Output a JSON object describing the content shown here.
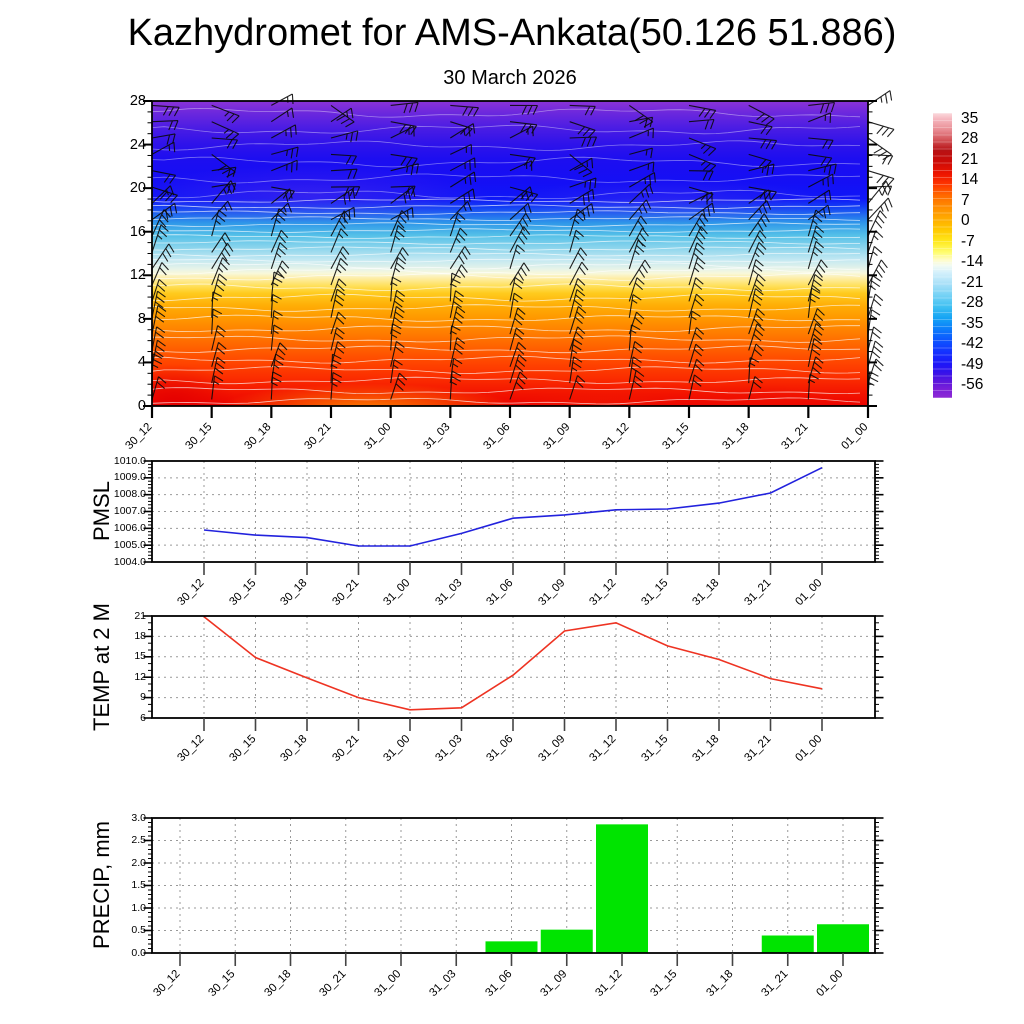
{
  "header": {
    "title": "Kazhydromet for AMS-Ankata(50.126 51.886)",
    "subtitle": "30 March 2026"
  },
  "time_labels": [
    "30_12",
    "30_15",
    "30_18",
    "30_21",
    "31_00",
    "31_03",
    "31_06",
    "31_09",
    "31_12",
    "31_15",
    "31_18",
    "31_21",
    "01_00"
  ],
  "colors": {
    "pmsl_line": "#2222dd",
    "temp_line": "#ee3322",
    "precip_bar": "#00e400",
    "grid": "#999999",
    "axis": "#000000",
    "tick_stub": "#444444",
    "barb": "#0a0a0a",
    "contour_line": "#ffffff"
  },
  "chart_data": [
    {
      "id": "temperature_height_section",
      "type": "heatmap",
      "description": "Time-height temperature cross-section with wind barbs and white contour lines",
      "ylim": [
        0,
        28
      ],
      "yticks": [
        "0",
        "4",
        "8",
        "12",
        "16",
        "20",
        "24",
        "28"
      ],
      "colorbar_ticks": [
        "35",
        "28",
        "21",
        "14",
        "7",
        "0",
        "-7",
        "-14",
        "-21",
        "-28",
        "-35",
        "-42",
        "-49",
        "-56"
      ],
      "wind_barbs": {
        "columns": 13,
        "rows": 19
      },
      "field_gradient": [
        [
          0,
          "#8b33d6"
        ],
        [
          4,
          "#6b28dd"
        ],
        [
          9,
          "#4a1ce4"
        ],
        [
          14,
          "#2f13ea"
        ],
        [
          19,
          "#1d0ef0"
        ],
        [
          27,
          "#140ff5"
        ],
        [
          32,
          "#0f17f7"
        ],
        [
          34.5,
          "#123bf6"
        ],
        [
          37,
          "#2166f0"
        ],
        [
          40,
          "#2f97e9"
        ],
        [
          44,
          "#54c0e8"
        ],
        [
          48,
          "#8ad4ec"
        ],
        [
          52,
          "#c2e8f2"
        ],
        [
          55,
          "#e6f3e9"
        ],
        [
          56.5,
          "#f8f8da"
        ],
        [
          58,
          "#fdeeaa"
        ],
        [
          60.5,
          "#ffe15e"
        ],
        [
          63,
          "#ffcb1e"
        ],
        [
          67,
          "#ffae06"
        ],
        [
          71,
          "#ff9900"
        ],
        [
          76,
          "#ff7d00"
        ],
        [
          81,
          "#ff6000"
        ],
        [
          86,
          "#ff4400"
        ],
        [
          91,
          "#fb2c00"
        ],
        [
          96,
          "#f31300"
        ],
        [
          100,
          "#ec0400"
        ]
      ],
      "colorbar_gradient": [
        [
          0,
          "#fbdade"
        ],
        [
          2,
          "#f6b9c1"
        ],
        [
          6,
          "#e88b92"
        ],
        [
          10,
          "#cf4a4e"
        ],
        [
          13,
          "#b61215"
        ],
        [
          17,
          "#cc0b07"
        ],
        [
          21.5,
          "#ee1500"
        ],
        [
          25,
          "#fe3600"
        ],
        [
          29,
          "#ff6a00"
        ],
        [
          33,
          "#ff8d00"
        ],
        [
          37,
          "#ffab00"
        ],
        [
          41,
          "#ffc900"
        ],
        [
          45,
          "#ffe81c"
        ],
        [
          49,
          "#fffd72"
        ],
        [
          51.5,
          "#fffcc8"
        ],
        [
          53.5,
          "#f3fbf3"
        ],
        [
          56,
          "#d4f0fb"
        ],
        [
          60,
          "#a8e0f8"
        ],
        [
          64,
          "#75d2f5"
        ],
        [
          68,
          "#3fc0f2"
        ],
        [
          72,
          "#14a3f4"
        ],
        [
          76,
          "#0c7bfb"
        ],
        [
          80,
          "#0d52ff"
        ],
        [
          84,
          "#1430ff"
        ],
        [
          88,
          "#1d17f8"
        ],
        [
          91,
          "#3512ea"
        ],
        [
          94,
          "#5a16dd"
        ],
        [
          97,
          "#7b1fd8"
        ],
        [
          100,
          "#8d2ad4"
        ]
      ]
    },
    {
      "id": "pmsl",
      "type": "line",
      "ylabel": "PMSL",
      "ylim": [
        1004,
        1010
      ],
      "yticks": [
        "1004.0",
        "1005.0",
        "1006.0",
        "1007.0",
        "1008.0",
        "1009.0",
        "1010.0"
      ],
      "values": [
        1005.9,
        1005.6,
        1005.45,
        1004.95,
        1004.95,
        1005.7,
        1006.6,
        1006.8,
        1007.1,
        1007.15,
        1007.5,
        1008.1,
        1009.6
      ]
    },
    {
      "id": "temp_2m",
      "type": "line",
      "ylabel": "TEMP at 2 M",
      "ylim": [
        6,
        21
      ],
      "yticks": [
        "6",
        "9",
        "12",
        "15",
        "18",
        "21"
      ],
      "values": [
        20.9,
        14.9,
        11.9,
        9.0,
        7.2,
        7.5,
        12.3,
        18.8,
        20.0,
        16.6,
        14.6,
        11.8,
        10.3
      ]
    },
    {
      "id": "precip",
      "type": "bar",
      "ylabel": "PRECIP, mm",
      "ylim": [
        0,
        3
      ],
      "yticks": [
        "0.0",
        "0.5",
        "1.0",
        "1.5",
        "2.0",
        "2.5",
        "3.0"
      ],
      "values": [
        0,
        0,
        0,
        0,
        0,
        0,
        0.27,
        0.53,
        2.87,
        0,
        0,
        0.4,
        0.65
      ]
    }
  ]
}
